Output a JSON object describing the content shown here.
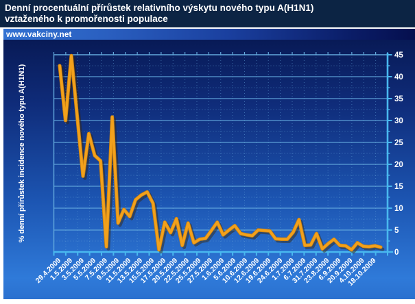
{
  "header": {
    "title_line1": "Denní procentuální přírůstek relativního výskytu nového typu A(H1N1)",
    "title_line2": "vztaženého k promořenosti populace"
  },
  "watermark": {
    "text": "www.vakciny.net"
  },
  "colors": {
    "title_bg": "#0c2444",
    "region_bg_top": "#081a56",
    "region_bg_bottom": "#2f7ad9",
    "grid_major": "#64aade",
    "grid_minor": "#5f9fd8",
    "axis": "#49b8ef",
    "line": "#f2a11c",
    "line_shadow": "#3a2302",
    "text": "#ffffff"
  },
  "chart_data": {
    "type": "line",
    "title": "Denní procentuální přírůstek relativního výskytu nového typu A(H1N1) vztaženého k promořenosti populace",
    "xlabel": "",
    "ylabel": "% denní přírůstek incidence nového typu A(H1N1)",
    "ylim": [
      0,
      45
    ],
    "ytick_step": 5,
    "yticks": [
      0,
      5,
      10,
      15,
      20,
      25,
      30,
      35,
      40,
      45
    ],
    "grid": true,
    "legend_position": "none",
    "x_label_note": "date labels shown for every 2nd data point",
    "categories": [
      "29.4.2009",
      "1.5.2009",
      "3.5.2009",
      "5.5.2009",
      "7.5.2009",
      "9.5.2009",
      "11.5.2009",
      "13.5.2009",
      "15.5.2009",
      "17.5.2009",
      "20.5.2009",
      "22.5.2009",
      "25.5.2009",
      "27.5.2009",
      "1.6.2009",
      "5.6.2009",
      "10.6.2009",
      "12.6.2009",
      "19.6.2009",
      "24.6.2009",
      "1.7.2009",
      "6.7.2009",
      "31.7.2009",
      "23.8.2009",
      "6.9.2009",
      "20.9.2009",
      "4.10.2009",
      "18.10.2009"
    ],
    "series": [
      {
        "name": "% denní přírůstek incidence nového typu A(H1N1)",
        "color": "#f2a11c",
        "values": [
          42.5,
          30,
          44.8,
          31,
          17.3,
          27,
          22,
          20.8,
          1.2,
          30.8,
          6.6,
          9.7,
          8.1,
          11.9,
          13,
          13.7,
          11.1,
          0.5,
          6.8,
          4.4,
          7.6,
          1.5,
          6.6,
          2.1,
          2.9,
          3.1,
          4.9,
          6.8,
          3.9,
          5,
          6,
          4.2,
          3.9,
          3.7,
          5,
          4.9,
          4.8,
          3,
          2.9,
          2.9,
          4.5,
          7.4,
          1.5,
          1.6,
          4.2,
          0.7,
          1.9,
          2.9,
          1.5,
          1.4,
          0.5,
          2.1,
          1.3,
          1.2,
          1.4,
          1.1
        ]
      }
    ]
  }
}
